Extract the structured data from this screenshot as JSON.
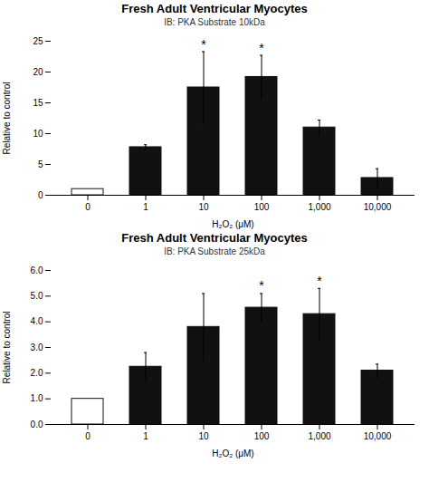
{
  "chart_data": [
    {
      "type": "bar",
      "title": "Fresh Adult Ventricular Myocytes",
      "annotations": [
        "IB: PKA Substrate",
        "10kDa"
      ],
      "categories": [
        "0",
        "1",
        "10",
        "100",
        "1,000",
        "10,000"
      ],
      "values": [
        1.0,
        7.8,
        17.5,
        19.2,
        11.0,
        2.8
      ],
      "errors": [
        0.0,
        0.4,
        5.8,
        3.5,
        1.2,
        1.5
      ],
      "starred": [
        false,
        false,
        true,
        true,
        false,
        false
      ],
      "star_label": "*",
      "colors": [
        "#ffffff",
        "#111111",
        "#111111",
        "#111111",
        "#111111",
        "#111111"
      ],
      "color": "#111111",
      "xlabel": "H₂O₂ (μM)",
      "ylabel": "Relative to control",
      "ylim": [
        0,
        25
      ],
      "yticks": [
        0,
        5,
        10,
        15,
        20,
        25
      ],
      "grid": false
    },
    {
      "type": "bar",
      "title": "Fresh Adult Ventricular Myocytes",
      "annotations": [
        "IB: PKA Substrate",
        "25kDa"
      ],
      "categories": [
        "0",
        "1",
        "10",
        "100",
        "1,000",
        "10,000"
      ],
      "values": [
        1.0,
        2.25,
        3.8,
        4.55,
        4.3,
        2.1
      ],
      "errors": [
        0.0,
        0.55,
        1.3,
        0.55,
        1.0,
        0.25
      ],
      "starred": [
        false,
        false,
        false,
        true,
        true,
        false
      ],
      "star_label": "*",
      "colors": [
        "#ffffff",
        "#111111",
        "#111111",
        "#111111",
        "#111111",
        "#111111"
      ],
      "color": "#111111",
      "xlabel": "H₂O₂ (μM)",
      "ylabel": "Relative to control",
      "ylim": [
        0,
        6
      ],
      "yticks": [
        0,
        1,
        2,
        3,
        4,
        5,
        6
      ],
      "grid": false
    }
  ]
}
